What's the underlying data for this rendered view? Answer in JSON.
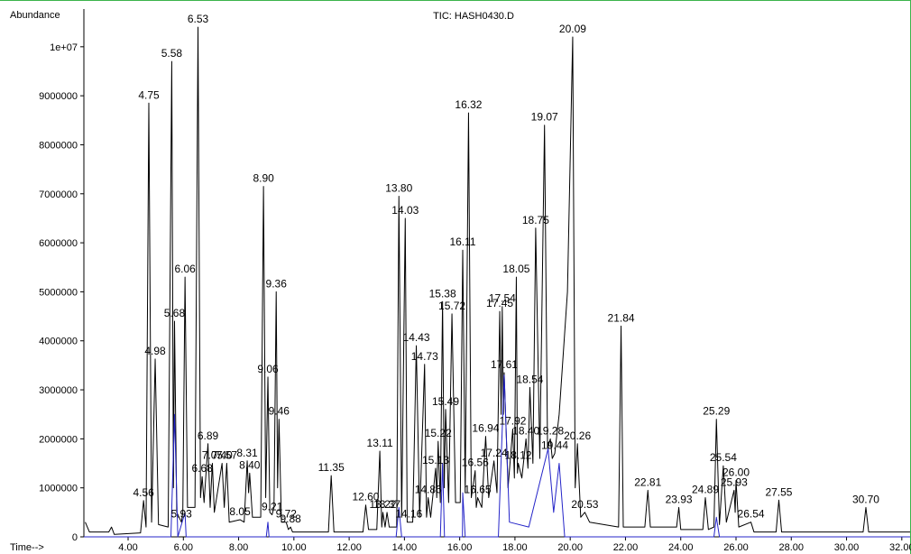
{
  "chart_data": {
    "type": "line",
    "title": "TIC: HASH0430.D",
    "ylabel": "Abundance",
    "xlabel": "Time-->",
    "xlim": [
      2.4,
      32.3
    ],
    "ylim": [
      0,
      10770000
    ],
    "xticks": [
      {
        "value": 4,
        "label": "4.00"
      },
      {
        "value": 6,
        "label": "6.00"
      },
      {
        "value": 8,
        "label": "8.00"
      },
      {
        "value": 10,
        "label": "10.00"
      },
      {
        "value": 12,
        "label": "12.00"
      },
      {
        "value": 14,
        "label": "14.00"
      },
      {
        "value": 16,
        "label": "16.00"
      },
      {
        "value": 18,
        "label": "18.00"
      },
      {
        "value": 20,
        "label": "20.00"
      },
      {
        "value": 22,
        "label": "22.00"
      },
      {
        "value": 24,
        "label": "24.00"
      },
      {
        "value": 26,
        "label": "26.00"
      },
      {
        "value": 28,
        "label": "28.00"
      },
      {
        "value": 30,
        "label": "30.00"
      },
      {
        "value": 32,
        "label": "32.00"
      }
    ],
    "yticks": [
      0,
      1000000,
      2000000,
      3000000,
      4000000,
      5000000,
      6000000,
      7000000,
      8000000,
      9000000,
      {
        "value": 10000000,
        "label": "1e+07"
      }
    ],
    "series": [
      {
        "color": "#000000",
        "x": [
          2.45,
          2.6,
          3.3,
          3.4,
          3.5,
          4.45,
          4.56,
          4.65,
          4.75,
          4.85,
          4.98,
          5.1,
          5.45,
          5.58,
          5.64,
          5.68,
          5.76,
          5.93,
          5.98,
          6.06,
          6.15,
          6.42,
          6.53,
          6.62,
          6.68,
          6.75,
          6.89,
          6.97,
          7.05,
          7.12,
          7.4,
          7.48,
          7.57,
          7.66,
          8.05,
          8.2,
          8.31,
          8.36,
          8.4,
          8.5,
          8.8,
          8.9,
          8.98,
          9.06,
          9.13,
          9.21,
          9.28,
          9.36,
          9.41,
          9.46,
          9.55,
          9.72,
          9.8,
          9.88,
          9.95,
          11.25,
          11.35,
          11.45,
          12.5,
          12.6,
          12.7,
          13.0,
          13.11,
          13.18,
          13.22,
          13.3,
          13.37,
          13.45,
          13.72,
          13.8,
          13.9,
          14.03,
          14.1,
          14.16,
          14.3,
          14.43,
          14.55,
          14.73,
          14.8,
          14.86,
          14.95,
          15.13,
          15.17,
          15.22,
          15.3,
          15.38,
          15.44,
          15.49,
          15.6,
          15.72,
          15.85,
          16.02,
          16.11,
          16.2,
          16.32,
          16.42,
          16.56,
          16.6,
          16.65,
          16.8,
          16.94,
          17.05,
          17.24,
          17.35,
          17.45,
          17.5,
          17.54,
          17.58,
          17.61,
          17.75,
          17.92,
          17.98,
          18.05,
          18.09,
          18.12,
          18.25,
          18.4,
          18.47,
          18.54,
          18.65,
          18.75,
          18.9,
          19.07,
          19.18,
          19.28,
          19.35,
          19.44,
          19.6,
          19.9,
          20.09,
          20.18,
          20.26,
          20.38,
          20.53,
          20.7,
          21.75,
          21.84,
          21.92,
          22.7,
          22.81,
          22.9,
          23.85,
          23.93,
          24.0,
          24.8,
          24.89,
          25.0,
          25.2,
          25.29,
          25.4,
          25.54,
          25.65,
          25.93,
          25.97,
          26.0,
          26.1,
          26.54,
          26.65,
          27.45,
          27.55,
          27.65,
          30.6,
          30.7,
          30.8,
          32.3
        ],
        "values": [
          300000,
          100000,
          100000,
          200000,
          50000,
          80000,
          740000,
          200000,
          8850000,
          300000,
          3630000,
          250000,
          200000,
          9700000,
          1000000,
          4400000,
          500000,
          300000,
          500000,
          5300000,
          600000,
          600000,
          10400000,
          800000,
          1230000,
          700000,
          1900000,
          600000,
          1500000,
          500000,
          1500000,
          600000,
          1500000,
          300000,
          350000,
          300000,
          1550000,
          900000,
          1300000,
          400000,
          400000,
          7150000,
          800000,
          3260000,
          500000,
          450000,
          600000,
          5000000,
          1000000,
          2400000,
          300000,
          300000,
          150000,
          200000,
          100000,
          100000,
          1250000,
          100000,
          100000,
          650000,
          150000,
          150000,
          1750000,
          200000,
          500000,
          200000,
          500000,
          200000,
          200000,
          6950000,
          400000,
          6500000,
          300000,
          300000,
          300000,
          3900000,
          400000,
          3520000,
          400000,
          800000,
          400000,
          1400000,
          800000,
          1950000,
          700000,
          4800000,
          1000000,
          2600000,
          700000,
          4550000,
          700000,
          700000,
          5850000,
          900000,
          8650000,
          800000,
          1350000,
          600000,
          800000,
          600000,
          2050000,
          800000,
          1550000,
          900000,
          4600000,
          2500000,
          4700000,
          2500000,
          3350000,
          1000000,
          2200000,
          1200000,
          5300000,
          1300000,
          1500000,
          1200000,
          2000000,
          1400000,
          3050000,
          1500000,
          6300000,
          1600000,
          8400000,
          1800000,
          2000000,
          1600000,
          1700000,
          2500000,
          5000000,
          10200000,
          1000000,
          1900000,
          400000,
          500000,
          300000,
          200000,
          4300000,
          200000,
          200000,
          950000,
          200000,
          200000,
          600000,
          150000,
          150000,
          800000,
          150000,
          200000,
          2400000,
          250000,
          1450000,
          300000,
          950000,
          500000,
          1150000,
          200000,
          300000,
          100000,
          100000,
          750000,
          100000,
          100000,
          600000,
          100000,
          100000
        ]
      },
      {
        "color": "#2424c8",
        "x": [
          2.4,
          5.55,
          5.68,
          5.8,
          6.06,
          6.1,
          9.0,
          9.06,
          9.1,
          13.7,
          13.8,
          13.9,
          15.3,
          15.38,
          15.45,
          16.1,
          16.11,
          16.2,
          17.4,
          17.61,
          17.8,
          18.5,
          19.2,
          19.4,
          19.6,
          19.8,
          25.2,
          25.29,
          25.4,
          32.3
        ],
        "values": [
          0,
          0,
          2500000,
          0,
          500000,
          0,
          0,
          300000,
          0,
          0,
          600000,
          0,
          0,
          1500000,
          0,
          0,
          900000,
          0,
          0,
          3300000,
          300000,
          200000,
          1800000,
          500000,
          1500000,
          0,
          0,
          400000,
          0,
          0
        ]
      }
    ],
    "annotations": [
      {
        "text": "4.56",
        "x": 4.56,
        "y": 740000
      },
      {
        "text": "4.75",
        "x": 4.75,
        "y": 8850000
      },
      {
        "text": "4.98",
        "x": 4.98,
        "y": 3630000
      },
      {
        "text": "5.58",
        "x": 5.58,
        "y": 9700000
      },
      {
        "text": "5.68",
        "x": 5.68,
        "y": 4400000
      },
      {
        "text": "5.93",
        "x": 5.93,
        "y": 300000
      },
      {
        "text": "6.06",
        "x": 6.06,
        "y": 5300000
      },
      {
        "text": "6.53",
        "x": 6.53,
        "y": 10400000
      },
      {
        "text": "6.68",
        "x": 6.68,
        "y": 1230000
      },
      {
        "text": "6.89",
        "x": 6.89,
        "y": 1900000
      },
      {
        "text": "7.05",
        "x": 7.05,
        "y": 1500000
      },
      {
        "text": "7.40",
        "x": 7.4,
        "y": 1500000
      },
      {
        "text": "7.57",
        "x": 7.57,
        "y": 1500000
      },
      {
        "text": "8.05",
        "x": 8.05,
        "y": 350000
      },
      {
        "text": "8.31",
        "x": 8.31,
        "y": 1550000
      },
      {
        "text": "8.40",
        "x": 8.4,
        "y": 1300000
      },
      {
        "text": "8.90",
        "x": 8.9,
        "y": 7150000
      },
      {
        "text": "9.06",
        "x": 9.06,
        "y": 3260000
      },
      {
        "text": "9.21",
        "x": 9.21,
        "y": 450000
      },
      {
        "text": "9.36",
        "x": 9.36,
        "y": 5000000
      },
      {
        "text": "9.46",
        "x": 9.46,
        "y": 2400000
      },
      {
        "text": "9.72",
        "x": 9.72,
        "y": 300000
      },
      {
        "text": "9.88",
        "x": 9.88,
        "y": 200000
      },
      {
        "text": "11.35",
        "x": 11.35,
        "y": 1250000
      },
      {
        "text": "12.60",
        "x": 12.6,
        "y": 650000
      },
      {
        "text": "13.11",
        "x": 13.11,
        "y": 1750000
      },
      {
        "text": "13.22",
        "x": 13.22,
        "y": 500000
      },
      {
        "text": "13.37",
        "x": 13.37,
        "y": 500000
      },
      {
        "text": "13.80",
        "x": 13.8,
        "y": 6950000
      },
      {
        "text": "14.03",
        "x": 14.03,
        "y": 6500000
      },
      {
        "text": "14.16",
        "x": 14.16,
        "y": 300000
      },
      {
        "text": "14.43",
        "x": 14.43,
        "y": 3900000
      },
      {
        "text": "14.73",
        "x": 14.73,
        "y": 3520000
      },
      {
        "text": "14.86",
        "x": 14.86,
        "y": 800000
      },
      {
        "text": "15.13",
        "x": 15.13,
        "y": 1400000
      },
      {
        "text": "15.22",
        "x": 15.22,
        "y": 1950000
      },
      {
        "text": "15.38",
        "x": 15.38,
        "y": 4800000
      },
      {
        "text": "15.49",
        "x": 15.49,
        "y": 2600000
      },
      {
        "text": "15.72",
        "x": 15.72,
        "y": 4550000
      },
      {
        "text": "16.11",
        "x": 16.11,
        "y": 5850000
      },
      {
        "text": "16.32",
        "x": 16.32,
        "y": 8650000
      },
      {
        "text": "16.56",
        "x": 16.56,
        "y": 1350000
      },
      {
        "text": "16.65",
        "x": 16.65,
        "y": 800000
      },
      {
        "text": "16.94",
        "x": 16.94,
        "y": 2050000
      },
      {
        "text": "17.24",
        "x": 17.24,
        "y": 1550000
      },
      {
        "text": "17.45",
        "x": 17.45,
        "y": 4600000
      },
      {
        "text": "17.54",
        "x": 17.54,
        "y": 4700000
      },
      {
        "text": "17.61",
        "x": 17.61,
        "y": 3350000
      },
      {
        "text": "17.92",
        "x": 17.92,
        "y": 2200000
      },
      {
        "text": "18.05",
        "x": 18.05,
        "y": 5300000
      },
      {
        "text": "18.12",
        "x": 18.12,
        "y": 1500000
      },
      {
        "text": "18.40",
        "x": 18.4,
        "y": 2000000
      },
      {
        "text": "18.54",
        "x": 18.54,
        "y": 3050000
      },
      {
        "text": "18.75",
        "x": 18.75,
        "y": 6300000
      },
      {
        "text": "19.07",
        "x": 19.07,
        "y": 8400000
      },
      {
        "text": "19.28",
        "x": 19.28,
        "y": 2000000
      },
      {
        "text": "19.44",
        "x": 19.44,
        "y": 1700000
      },
      {
        "text": "20.09",
        "x": 20.09,
        "y": 10200000
      },
      {
        "text": "20.26",
        "x": 20.26,
        "y": 1900000
      },
      {
        "text": "20.53",
        "x": 20.53,
        "y": 500000
      },
      {
        "text": "21.84",
        "x": 21.84,
        "y": 4300000
      },
      {
        "text": "22.81",
        "x": 22.81,
        "y": 950000
      },
      {
        "text": "23.93",
        "x": 23.93,
        "y": 600000
      },
      {
        "text": "24.89",
        "x": 24.89,
        "y": 800000
      },
      {
        "text": "25.29",
        "x": 25.29,
        "y": 2400000
      },
      {
        "text": "25.54",
        "x": 25.54,
        "y": 1450000
      },
      {
        "text": "25.93",
        "x": 25.93,
        "y": 950000
      },
      {
        "text": "26.00",
        "x": 26.0,
        "y": 1150000
      },
      {
        "text": "26.54",
        "x": 26.54,
        "y": 300000
      },
      {
        "text": "27.55",
        "x": 27.55,
        "y": 750000
      },
      {
        "text": "30.70",
        "x": 30.7,
        "y": 600000
      }
    ]
  }
}
